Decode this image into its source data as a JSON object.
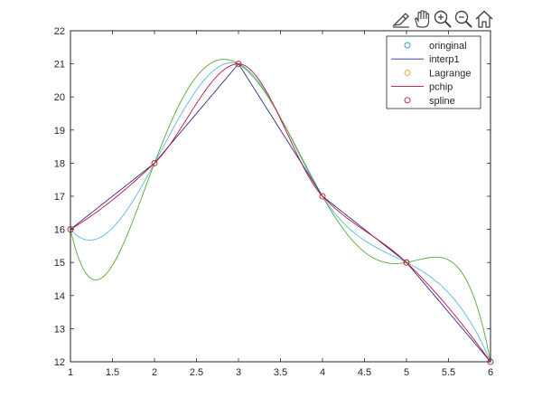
{
  "toolbar": {
    "icons": [
      "brush-icon",
      "pan-hand-icon",
      "zoom-in-icon",
      "zoom-out-icon",
      "home-icon"
    ]
  },
  "colors": {
    "original": "#1f9bd6",
    "interp1": "#2b2b8f",
    "lagrange": "#e8a317",
    "pchip": "#c0143c",
    "spline": "#5aa832",
    "axis": "#262626"
  },
  "chart_data": {
    "type": "line",
    "title": "",
    "xlabel": "",
    "ylabel": "",
    "xlim": [
      1,
      6
    ],
    "ylim": [
      12,
      22
    ],
    "xticks": [
      1,
      1.5,
      2,
      2.5,
      3,
      3.5,
      4,
      4.5,
      5,
      5.5,
      6
    ],
    "yticks": [
      12,
      13,
      14,
      15,
      16,
      17,
      18,
      19,
      20,
      21,
      22
    ],
    "xtick_labels": [
      "1",
      "1.5",
      "2",
      "2.5",
      "3",
      "3.5",
      "4",
      "4.5",
      "5",
      "5.5",
      "6"
    ],
    "ytick_labels": [
      "12",
      "13",
      "14",
      "15",
      "16",
      "17",
      "18",
      "19",
      "20",
      "21",
      "22"
    ],
    "grid": false,
    "legend_position": "top-right",
    "x": [
      1,
      2,
      3,
      4,
      5,
      6
    ],
    "y": [
      16,
      18,
      21,
      17,
      15,
      12
    ],
    "series": [
      {
        "name": "oringinal",
        "style": "marker",
        "color": "#1f9bd6",
        "method": "points"
      },
      {
        "name": "interp1",
        "style": "line",
        "color": "#2b2b8f",
        "method": "linear"
      },
      {
        "name": "Lagrange",
        "style": "marker",
        "color": "#e8a317",
        "method": "points"
      },
      {
        "name": "pchip",
        "style": "line",
        "color": "#c0143c",
        "method": "pchip"
      },
      {
        "name": "spline",
        "style": "marker",
        "color": "#c0143c",
        "method": "points"
      }
    ],
    "unlabeled_curves": [
      {
        "method": "lagrange",
        "color": "#5aa832"
      },
      {
        "method": "spline",
        "color": "#58b8e6"
      }
    ]
  }
}
